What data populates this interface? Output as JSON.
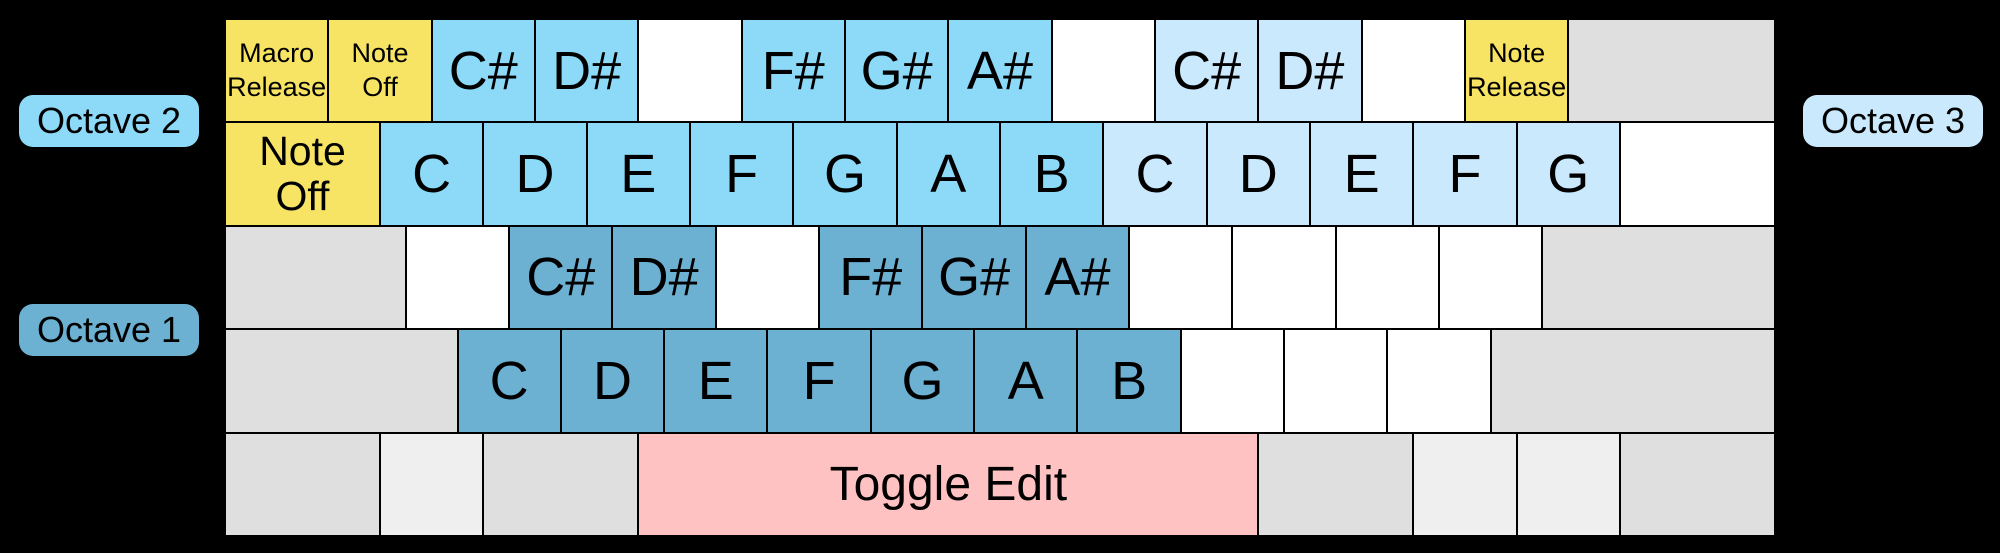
{
  "octave_labels": {
    "octave1": "Octave 1",
    "octave2": "Octave 2",
    "octave3": "Octave 3"
  },
  "keyboard": {
    "units_per_row": 15,
    "colors": {
      "function": "#f7e464",
      "octave2": "#8cd9f8",
      "octave3": "#cbe9fc",
      "octave1": "#6cb0d2",
      "toggle": "#ffc2c2",
      "mod": "#dfdfdf",
      "modLight": "#efefef",
      "blank": "#ffffff",
      "background": "#000000",
      "key_border": "#000000"
    },
    "rows": [
      {
        "name": "row-number",
        "keys": [
          {
            "label": "Macro\nRelease",
            "type": "function",
            "u": 1,
            "size": "small",
            "name": "key-macro-release"
          },
          {
            "label": "Note\nOff",
            "type": "function",
            "u": 1,
            "size": "small",
            "name": "key-note-off-small"
          },
          {
            "label": "C#",
            "type": "octave2",
            "u": 1,
            "size": "note",
            "name": "key-csharp-octave2"
          },
          {
            "label": "D#",
            "type": "octave2",
            "u": 1,
            "size": "note",
            "name": "key-dsharp-octave2"
          },
          {
            "label": "",
            "type": "blank",
            "u": 1,
            "size": "note",
            "name": "key-blank"
          },
          {
            "label": "F#",
            "type": "octave2",
            "u": 1,
            "size": "note",
            "name": "key-fsharp-octave2"
          },
          {
            "label": "G#",
            "type": "octave2",
            "u": 1,
            "size": "note",
            "name": "key-gsharp-octave2"
          },
          {
            "label": "A#",
            "type": "octave2",
            "u": 1,
            "size": "note",
            "name": "key-asharp-octave2"
          },
          {
            "label": "",
            "type": "blank",
            "u": 1,
            "size": "note",
            "name": "key-blank"
          },
          {
            "label": "C#",
            "type": "octave3",
            "u": 1,
            "size": "note",
            "name": "key-csharp-octave3"
          },
          {
            "label": "D#",
            "type": "octave3",
            "u": 1,
            "size": "note",
            "name": "key-dsharp-octave3"
          },
          {
            "label": "",
            "type": "blank",
            "u": 1,
            "size": "note",
            "name": "key-blank"
          },
          {
            "label": "Note\nRelease",
            "type": "function",
            "u": 1,
            "size": "small",
            "name": "key-note-release"
          },
          {
            "label": "",
            "type": "mod",
            "u": 2,
            "size": "note",
            "name": "key-modifier-gray"
          }
        ]
      },
      {
        "name": "row-tab",
        "keys": [
          {
            "label": "Note\nOff",
            "type": "function",
            "u": 1.5,
            "size": "large",
            "name": "key-note-off-large"
          },
          {
            "label": "C",
            "type": "octave2",
            "u": 1,
            "size": "note",
            "name": "key-c-octave2"
          },
          {
            "label": "D",
            "type": "octave2",
            "u": 1,
            "size": "note",
            "name": "key-d-octave2"
          },
          {
            "label": "E",
            "type": "octave2",
            "u": 1,
            "size": "note",
            "name": "key-e-octave2"
          },
          {
            "label": "F",
            "type": "octave2",
            "u": 1,
            "size": "note",
            "name": "key-f-octave2"
          },
          {
            "label": "G",
            "type": "octave2",
            "u": 1,
            "size": "note",
            "name": "key-g-octave2"
          },
          {
            "label": "A",
            "type": "octave2",
            "u": 1,
            "size": "note",
            "name": "key-a-octave2"
          },
          {
            "label": "B",
            "type": "octave2",
            "u": 1,
            "size": "note",
            "name": "key-b-octave2"
          },
          {
            "label": "C",
            "type": "octave3",
            "u": 1,
            "size": "note",
            "name": "key-c-octave3"
          },
          {
            "label": "D",
            "type": "octave3",
            "u": 1,
            "size": "note",
            "name": "key-d-octave3"
          },
          {
            "label": "E",
            "type": "octave3",
            "u": 1,
            "size": "note",
            "name": "key-e-octave3"
          },
          {
            "label": "F",
            "type": "octave3",
            "u": 1,
            "size": "note",
            "name": "key-f-octave3"
          },
          {
            "label": "G",
            "type": "octave3",
            "u": 1,
            "size": "note",
            "name": "key-g-octave3"
          },
          {
            "label": "",
            "type": "blank",
            "u": 1.5,
            "size": "note",
            "name": "key-blank"
          }
        ]
      },
      {
        "name": "row-caps",
        "keys": [
          {
            "label": "",
            "type": "mod",
            "u": 1.75,
            "size": "note",
            "name": "key-modifier-gray"
          },
          {
            "label": "",
            "type": "blank",
            "u": 1,
            "size": "note",
            "name": "key-blank"
          },
          {
            "label": "C#",
            "type": "octave1",
            "u": 1,
            "size": "note",
            "name": "key-csharp-octave1"
          },
          {
            "label": "D#",
            "type": "octave1",
            "u": 1,
            "size": "note",
            "name": "key-dsharp-octave1"
          },
          {
            "label": "",
            "type": "blank",
            "u": 1,
            "size": "note",
            "name": "key-blank"
          },
          {
            "label": "F#",
            "type": "octave1",
            "u": 1,
            "size": "note",
            "name": "key-fsharp-octave1"
          },
          {
            "label": "G#",
            "type": "octave1",
            "u": 1,
            "size": "note",
            "name": "key-gsharp-octave1"
          },
          {
            "label": "A#",
            "type": "octave1",
            "u": 1,
            "size": "note",
            "name": "key-asharp-octave1"
          },
          {
            "label": "",
            "type": "blank",
            "u": 1,
            "size": "note",
            "name": "key-blank"
          },
          {
            "label": "",
            "type": "blank",
            "u": 1,
            "size": "note",
            "name": "key-blank"
          },
          {
            "label": "",
            "type": "blank",
            "u": 1,
            "size": "note",
            "name": "key-blank"
          },
          {
            "label": "",
            "type": "blank",
            "u": 1,
            "size": "note",
            "name": "key-blank"
          },
          {
            "label": "",
            "type": "mod",
            "u": 2.25,
            "size": "note",
            "name": "key-modifier-gray"
          }
        ]
      },
      {
        "name": "row-shift",
        "keys": [
          {
            "label": "",
            "type": "mod",
            "u": 2.25,
            "size": "note",
            "name": "key-modifier-gray"
          },
          {
            "label": "C",
            "type": "octave1",
            "u": 1,
            "size": "note",
            "name": "key-c-octave1"
          },
          {
            "label": "D",
            "type": "octave1",
            "u": 1,
            "size": "note",
            "name": "key-d-octave1"
          },
          {
            "label": "E",
            "type": "octave1",
            "u": 1,
            "size": "note",
            "name": "key-e-octave1"
          },
          {
            "label": "F",
            "type": "octave1",
            "u": 1,
            "size": "note",
            "name": "key-f-octave1"
          },
          {
            "label": "G",
            "type": "octave1",
            "u": 1,
            "size": "note",
            "name": "key-g-octave1"
          },
          {
            "label": "A",
            "type": "octave1",
            "u": 1,
            "size": "note",
            "name": "key-a-octave1"
          },
          {
            "label": "B",
            "type": "octave1",
            "u": 1,
            "size": "note",
            "name": "key-b-octave1"
          },
          {
            "label": "",
            "type": "blank",
            "u": 1,
            "size": "note",
            "name": "key-blank"
          },
          {
            "label": "",
            "type": "blank",
            "u": 1,
            "size": "note",
            "name": "key-blank"
          },
          {
            "label": "",
            "type": "blank",
            "u": 1,
            "size": "note",
            "name": "key-blank"
          },
          {
            "label": "",
            "type": "mod",
            "u": 2.75,
            "size": "note",
            "name": "key-modifier-gray"
          }
        ]
      },
      {
        "name": "row-space",
        "keys": [
          {
            "label": "",
            "type": "mod",
            "u": 1.5,
            "size": "note",
            "name": "key-modifier-gray"
          },
          {
            "label": "",
            "type": "modLight",
            "u": 1,
            "size": "note",
            "name": "key-modifier-light-gray"
          },
          {
            "label": "",
            "type": "mod",
            "u": 1.5,
            "size": "note",
            "name": "key-modifier-gray"
          },
          {
            "label": "Toggle Edit",
            "type": "toggle",
            "u": 6,
            "size": "toggle",
            "name": "key-toggle-edit"
          },
          {
            "label": "",
            "type": "mod",
            "u": 1.5,
            "size": "note",
            "name": "key-modifier-gray"
          },
          {
            "label": "",
            "type": "modLight",
            "u": 1,
            "size": "note",
            "name": "key-modifier-light-gray"
          },
          {
            "label": "",
            "type": "modLight",
            "u": 1,
            "size": "note",
            "name": "key-modifier-light-gray"
          },
          {
            "label": "",
            "type": "mod",
            "u": 1.5,
            "size": "note",
            "name": "key-modifier-gray"
          }
        ]
      }
    ]
  }
}
